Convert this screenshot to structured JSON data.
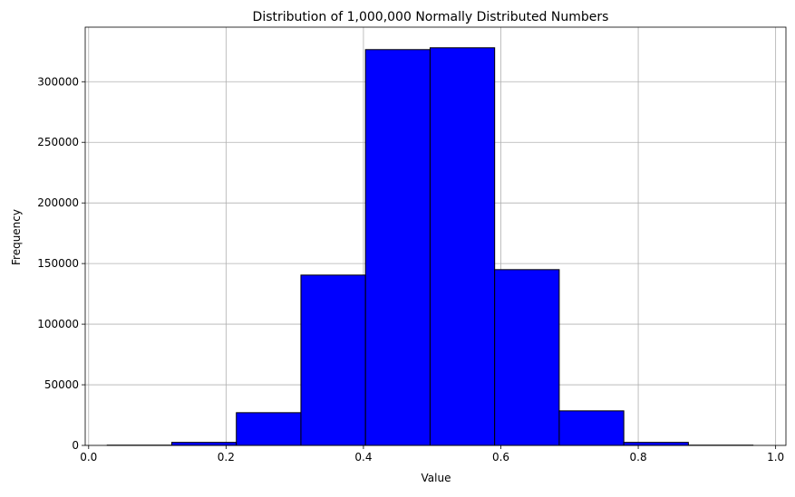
{
  "chart_data": {
    "type": "bar",
    "title": "Distribution of 1,000,000 Normally Distributed Numbers",
    "xlabel": "Value",
    "ylabel": "Frequency",
    "xlim": [
      -0.005,
      1.015
    ],
    "ylim": [
      0,
      345000
    ],
    "x_ticks": [
      0.0,
      0.2,
      0.4,
      0.6,
      0.8,
      1.0
    ],
    "x_tick_labels": [
      "0.0",
      "0.2",
      "0.4",
      "0.6",
      "0.8",
      "1.0"
    ],
    "y_ticks": [
      0,
      50000,
      100000,
      150000,
      200000,
      250000,
      300000
    ],
    "y_tick_labels": [
      "0",
      "50000",
      "100000",
      "150000",
      "200000",
      "250000",
      "300000"
    ],
    "bin_edges": [
      0.027,
      0.121,
      0.215,
      0.309,
      0.403,
      0.497,
      0.591,
      0.685,
      0.779,
      0.873,
      0.967
    ],
    "values": [
      200,
      2500,
      27000,
      140500,
      326500,
      328000,
      145000,
      28500,
      2500,
      200
    ],
    "grid": true,
    "colors": {
      "bar_fill": "#0000ff",
      "bar_edge": "#000000",
      "grid": "#b0b0b0",
      "axis": "#000000"
    }
  }
}
